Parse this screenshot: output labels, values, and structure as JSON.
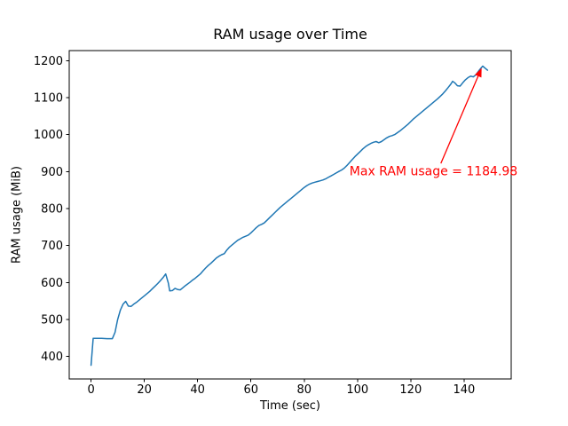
{
  "figure": {
    "background": "#ffffff"
  },
  "chart_data": {
    "type": "line",
    "title": "RAM usage over Time",
    "xlabel": "Time (sec)",
    "ylabel": "RAM usage (MiB)",
    "line_color": "#1f77b4",
    "grid": false,
    "legend": null,
    "xlim": [
      -8.2,
      157.7
    ],
    "ylim": [
      339,
      1227
    ],
    "xticks": [
      0,
      20,
      40,
      60,
      80,
      100,
      120,
      140
    ],
    "yticks": [
      400,
      500,
      600,
      700,
      800,
      900,
      1000,
      1100,
      1200
    ],
    "max_value": 1184.98,
    "x": [
      0,
      0.8,
      2,
      4,
      6,
      8,
      9,
      10,
      11,
      12,
      13,
      14,
      15,
      16,
      17,
      18,
      19,
      20,
      21,
      22,
      23,
      24,
      25,
      26,
      27,
      28,
      29,
      29.5,
      30.5,
      31.5,
      32.5,
      33.5,
      34.5,
      35.5,
      37,
      38,
      39,
      40,
      41,
      42,
      43,
      44,
      45,
      46,
      47,
      48,
      49,
      50,
      51,
      52,
      53,
      54,
      55,
      56,
      57,
      58,
      59,
      60,
      61,
      62,
      63,
      64,
      65,
      66,
      67,
      68,
      69,
      70,
      71,
      72,
      73,
      74,
      75,
      76,
      77,
      78,
      79,
      80,
      81,
      82,
      83,
      84,
      85,
      86,
      87,
      88,
      89,
      90,
      91,
      92,
      93,
      94,
      95,
      96,
      97,
      98,
      99,
      100,
      101,
      102,
      103,
      104,
      105,
      106,
      107,
      108,
      109,
      110,
      111,
      112,
      113,
      114,
      115,
      116,
      117,
      118,
      119,
      120,
      121,
      122,
      123,
      124,
      125,
      126,
      127,
      128,
      129,
      130,
      131,
      132,
      133,
      134,
      135,
      135.7,
      136.5,
      137.5,
      138.5,
      139.5,
      140.5,
      141.5,
      142.5,
      143.5,
      144.5,
      145.5,
      146.5,
      147,
      147.8,
      148.8
    ],
    "y": [
      376,
      449,
      449,
      449,
      448,
      448,
      465,
      500,
      525,
      541,
      549,
      536,
      535,
      541,
      546,
      552,
      558,
      564,
      570,
      576,
      583,
      590,
      597,
      605,
      613,
      623,
      598,
      577,
      578,
      584,
      581,
      580,
      586,
      592,
      600,
      606,
      611,
      617,
      623,
      631,
      639,
      646,
      652,
      659,
      666,
      671,
      675,
      678,
      688,
      696,
      702,
      708,
      714,
      718,
      722,
      725,
      728,
      734,
      741,
      748,
      754,
      757,
      761,
      768,
      775,
      782,
      789,
      796,
      803,
      809,
      815,
      821,
      827,
      833,
      839,
      845,
      851,
      857,
      862,
      866,
      869,
      871,
      873,
      875,
      877,
      880,
      884,
      888,
      892,
      896,
      900,
      904,
      909,
      916,
      924,
      932,
      940,
      947,
      954,
      961,
      967,
      972,
      976,
      979,
      981,
      978,
      981,
      986,
      991,
      995,
      997,
      1000,
      1005,
      1010,
      1016,
      1022,
      1028,
      1035,
      1042,
      1048,
      1054,
      1060,
      1066,
      1072,
      1078,
      1084,
      1090,
      1096,
      1103,
      1110,
      1118,
      1127,
      1136,
      1144,
      1140,
      1132,
      1131,
      1140,
      1148,
      1154,
      1158,
      1156,
      1162,
      1172,
      1181,
      1184.98,
      1180,
      1174
    ],
    "annotation": {
      "text": "Max RAM usage = 1184.98",
      "color": "#ff0000",
      "text_xy": [
        97,
        890
      ],
      "arrow_from": [
        131.3,
        922
      ],
      "arrow_to": [
        146.6,
        1180
      ]
    }
  }
}
